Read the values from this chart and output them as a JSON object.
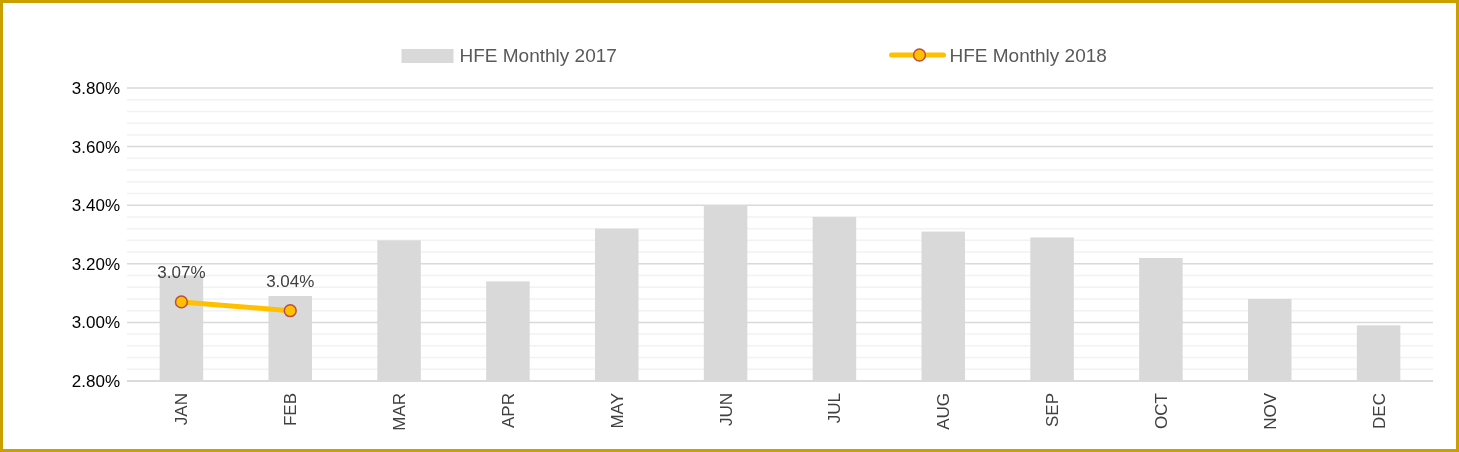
{
  "chart_data": {
    "type": "bar",
    "categories": [
      "JAN",
      "FEB",
      "MAR",
      "APR",
      "MAY",
      "JUN",
      "JUL",
      "AUG",
      "SEP",
      "OCT",
      "NOV",
      "DEC"
    ],
    "series": [
      {
        "name": "HFE Monthly 2017",
        "color": "#d9d9d9",
        "values": [
          3.16,
          3.09,
          3.28,
          3.14,
          3.32,
          3.4,
          3.36,
          3.31,
          3.29,
          3.22,
          3.08,
          2.99
        ]
      },
      {
        "name": "HFE Monthly 2018",
        "type": "line",
        "color": "#ffc000",
        "marker": "circle",
        "values": [
          3.07,
          3.04,
          null,
          null,
          null,
          null,
          null,
          null,
          null,
          null,
          null,
          null
        ],
        "value_labels": [
          "3.07%",
          "3.04%",
          null,
          null,
          null,
          null,
          null,
          null,
          null,
          null,
          null,
          null
        ]
      }
    ],
    "ylim": [
      2.8,
      3.8
    ],
    "yticks": [
      {
        "value": 2.8,
        "label": "2.80%"
      },
      {
        "value": 2.84,
        "label": null
      },
      {
        "value": 2.88,
        "label": null
      },
      {
        "value": 2.92,
        "label": null
      },
      {
        "value": 2.96,
        "label": null
      },
      {
        "value": 3.0,
        "label": "3.00%"
      },
      {
        "value": 3.04,
        "label": null
      },
      {
        "value": 3.08,
        "label": null
      },
      {
        "value": 3.12,
        "label": null
      },
      {
        "value": 3.16,
        "label": null
      },
      {
        "value": 3.2,
        "label": "3.20%"
      },
      {
        "value": 3.24,
        "label": null
      },
      {
        "value": 3.28,
        "label": null
      },
      {
        "value": 3.32,
        "label": null
      },
      {
        "value": 3.36,
        "label": null
      },
      {
        "value": 3.4,
        "label": "3.40%"
      },
      {
        "value": 3.44,
        "label": null
      },
      {
        "value": 3.48,
        "label": null
      },
      {
        "value": 3.52,
        "label": null
      },
      {
        "value": 3.56,
        "label": null
      },
      {
        "value": 3.6,
        "label": "3.60%"
      },
      {
        "value": 3.64,
        "label": null
      },
      {
        "value": 3.68,
        "label": null
      },
      {
        "value": 3.72,
        "label": null
      },
      {
        "value": 3.76,
        "label": null
      },
      {
        "value": 3.8,
        "label": "3.80%"
      }
    ],
    "grid": "y",
    "legend": "top"
  }
}
